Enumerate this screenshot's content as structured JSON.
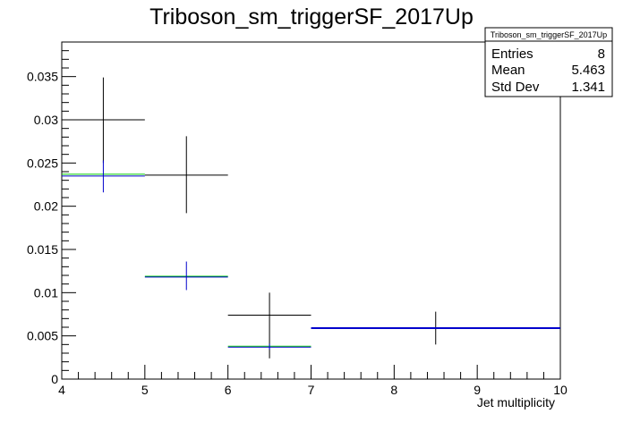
{
  "chart_data": {
    "type": "scatter",
    "title": "Triboson_sm_triggerSF_2017Up",
    "xlabel": "Jet multiplicity",
    "ylabel": "",
    "xlim": [
      4,
      10
    ],
    "ylim": [
      0,
      0.039
    ],
    "x_ticks": [
      "4",
      "5",
      "6",
      "7",
      "8",
      "9",
      "10"
    ],
    "y_ticks": [
      "0",
      "0.005",
      "0.01",
      "0.015",
      "0.02",
      "0.025",
      "0.03",
      "0.035"
    ],
    "grid": false,
    "series": [
      {
        "color": "#000000",
        "points": [
          {
            "x": 4.5,
            "xlo": 4,
            "xhi": 5,
            "y": 0.03,
            "ylo": 0.025,
            "yhi": 0.0349
          },
          {
            "x": 5.5,
            "xlo": 5,
            "xhi": 6,
            "y": 0.0236,
            "ylo": 0.0192,
            "yhi": 0.0281
          },
          {
            "x": 6.5,
            "xlo": 6,
            "xhi": 7,
            "y": 0.0074,
            "ylo": 0.0024,
            "yhi": 0.01
          },
          {
            "x": 8.5,
            "xlo": 7,
            "xhi": 10,
            "y": 0.0059,
            "ylo": 0.004,
            "yhi": 0.0078
          }
        ]
      },
      {
        "color": "#00cc00",
        "points": [
          {
            "x": 4.5,
            "xlo": 4,
            "xhi": 5,
            "y": 0.0237,
            "ylo": 0.0237,
            "yhi": 0.0237
          },
          {
            "x": 5.5,
            "xlo": 5,
            "xhi": 6,
            "y": 0.0119,
            "ylo": 0.0119,
            "yhi": 0.0119
          },
          {
            "x": 6.5,
            "xlo": 6,
            "xhi": 7,
            "y": 0.0038,
            "ylo": 0.0038,
            "yhi": 0.0038
          },
          {
            "x": 8.5,
            "xlo": 7,
            "xhi": 10,
            "y": 0.0059,
            "ylo": 0.0059,
            "yhi": 0.0059
          }
        ]
      },
      {
        "color": "#0000cc",
        "points": [
          {
            "x": 4.5,
            "xlo": 4,
            "xhi": 5,
            "y": 0.0235,
            "ylo": 0.0216,
            "yhi": 0.0253
          },
          {
            "x": 5.5,
            "xlo": 5,
            "xhi": 6,
            "y": 0.0118,
            "ylo": 0.0103,
            "yhi": 0.0136
          },
          {
            "x": 6.5,
            "xlo": 6,
            "xhi": 7,
            "y": 0.0037,
            "ylo": 0.0034,
            "yhi": 0.0041
          },
          {
            "x": 8.5,
            "xlo": 7,
            "xhi": 10,
            "y": 0.0059,
            "ylo": 0.0059,
            "yhi": 0.0059
          }
        ]
      }
    ],
    "stats_box": {
      "title": "Triboson_sm_triggerSF_2017Up",
      "rows": [
        {
          "label": "Entries",
          "value": "8"
        },
        {
          "label": "Mean",
          "value": "5.463"
        },
        {
          "label": "Std Dev",
          "value": "1.341"
        }
      ]
    }
  }
}
